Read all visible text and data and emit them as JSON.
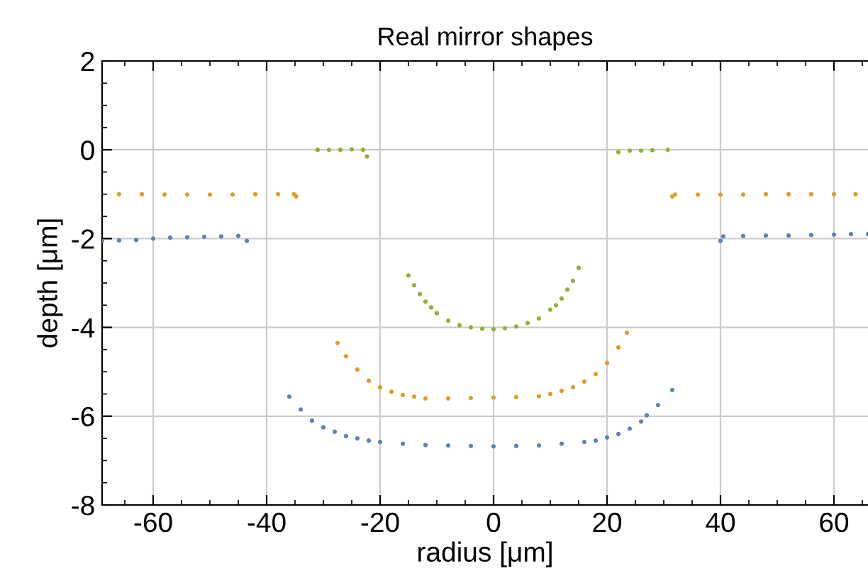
{
  "chart_data": {
    "type": "scatter",
    "title": "Real mirror shapes",
    "xlabel": "radius [μm]",
    "ylabel": "depth [μm]",
    "xlim": [
      -69,
      66
    ],
    "ylim": [
      -8,
      2
    ],
    "xticks": [
      -60,
      -40,
      -20,
      0,
      20,
      40,
      60
    ],
    "yticks": [
      -8,
      -6,
      -4,
      -2,
      0,
      2
    ],
    "grid": true,
    "marker": "circle",
    "series": [
      {
        "color": "#5e81b5",
        "x": [
          -69,
          -66,
          -63,
          -60,
          -57,
          -54,
          -51,
          -48,
          -45,
          -43.5,
          -36,
          -34,
          -32,
          -30,
          -28,
          -26,
          -24,
          -22,
          -20,
          -16,
          -12,
          -8,
          -4,
          0,
          4,
          8,
          12,
          16,
          18,
          20,
          22,
          24,
          26,
          27,
          29,
          31.5,
          40,
          40.5,
          44,
          48,
          52,
          56,
          60,
          63,
          66
        ],
        "values": [
          -2.05,
          -2.04,
          -2.03,
          -2.0,
          -1.98,
          -1.97,
          -1.96,
          -1.95,
          -1.94,
          -2.05,
          -5.56,
          -5.85,
          -6.1,
          -6.25,
          -6.35,
          -6.45,
          -6.5,
          -6.55,
          -6.58,
          -6.62,
          -6.65,
          -6.66,
          -6.67,
          -6.68,
          -6.67,
          -6.66,
          -6.62,
          -6.58,
          -6.55,
          -6.48,
          -6.4,
          -6.28,
          -6.12,
          -5.98,
          -5.75,
          -5.41,
          -2.05,
          -1.95,
          -1.94,
          -1.93,
          -1.93,
          -1.92,
          -1.91,
          -1.9,
          -1.9
        ]
      },
      {
        "color": "#e19c24",
        "x": [
          -66,
          -62,
          -58,
          -54,
          -50,
          -46,
          -42,
          -38,
          -35.2,
          -34.8,
          -27.5,
          -26,
          -24,
          -22,
          -20,
          -18,
          -16,
          -14,
          -12,
          -8,
          -4,
          0,
          4,
          8,
          10,
          12,
          14,
          16,
          18,
          20,
          22,
          23.5,
          31.5,
          32,
          36,
          40,
          44,
          48,
          52,
          56,
          60,
          63.8
        ],
        "values": [
          -1.0,
          -1.0,
          -1.01,
          -1.01,
          -1.01,
          -1.01,
          -1.0,
          -1.0,
          -1.0,
          -1.05,
          -4.35,
          -4.65,
          -4.95,
          -5.2,
          -5.35,
          -5.45,
          -5.52,
          -5.56,
          -5.6,
          -5.6,
          -5.59,
          -5.58,
          -5.57,
          -5.55,
          -5.5,
          -5.43,
          -5.35,
          -5.22,
          -5.05,
          -4.8,
          -4.45,
          -4.12,
          -1.05,
          -1.01,
          -1.01,
          -1.01,
          -1.01,
          -1.0,
          -1.0,
          -1.0,
          -1.0,
          -1.0
        ]
      },
      {
        "color": "#8fb032",
        "x": [
          -31,
          -29,
          -27,
          -25,
          -23,
          -22.3,
          -15,
          -14,
          -13,
          -12,
          -11,
          -10,
          -8,
          -6,
          -4,
          -2,
          0,
          2,
          4,
          6,
          8,
          10,
          11,
          12,
          13,
          14,
          15,
          22,
          24,
          26,
          28,
          30.7
        ],
        "values": [
          0.0,
          0.0,
          0.0,
          0.01,
          0.0,
          -0.15,
          -2.83,
          -3.05,
          -3.25,
          -3.42,
          -3.55,
          -3.68,
          -3.85,
          -3.95,
          -4.0,
          -4.03,
          -4.04,
          -4.02,
          -3.98,
          -3.9,
          -3.8,
          -3.6,
          -3.5,
          -3.35,
          -3.15,
          -2.95,
          -2.66,
          -0.05,
          -0.02,
          -0.02,
          -0.01,
          0.0
        ]
      }
    ]
  }
}
